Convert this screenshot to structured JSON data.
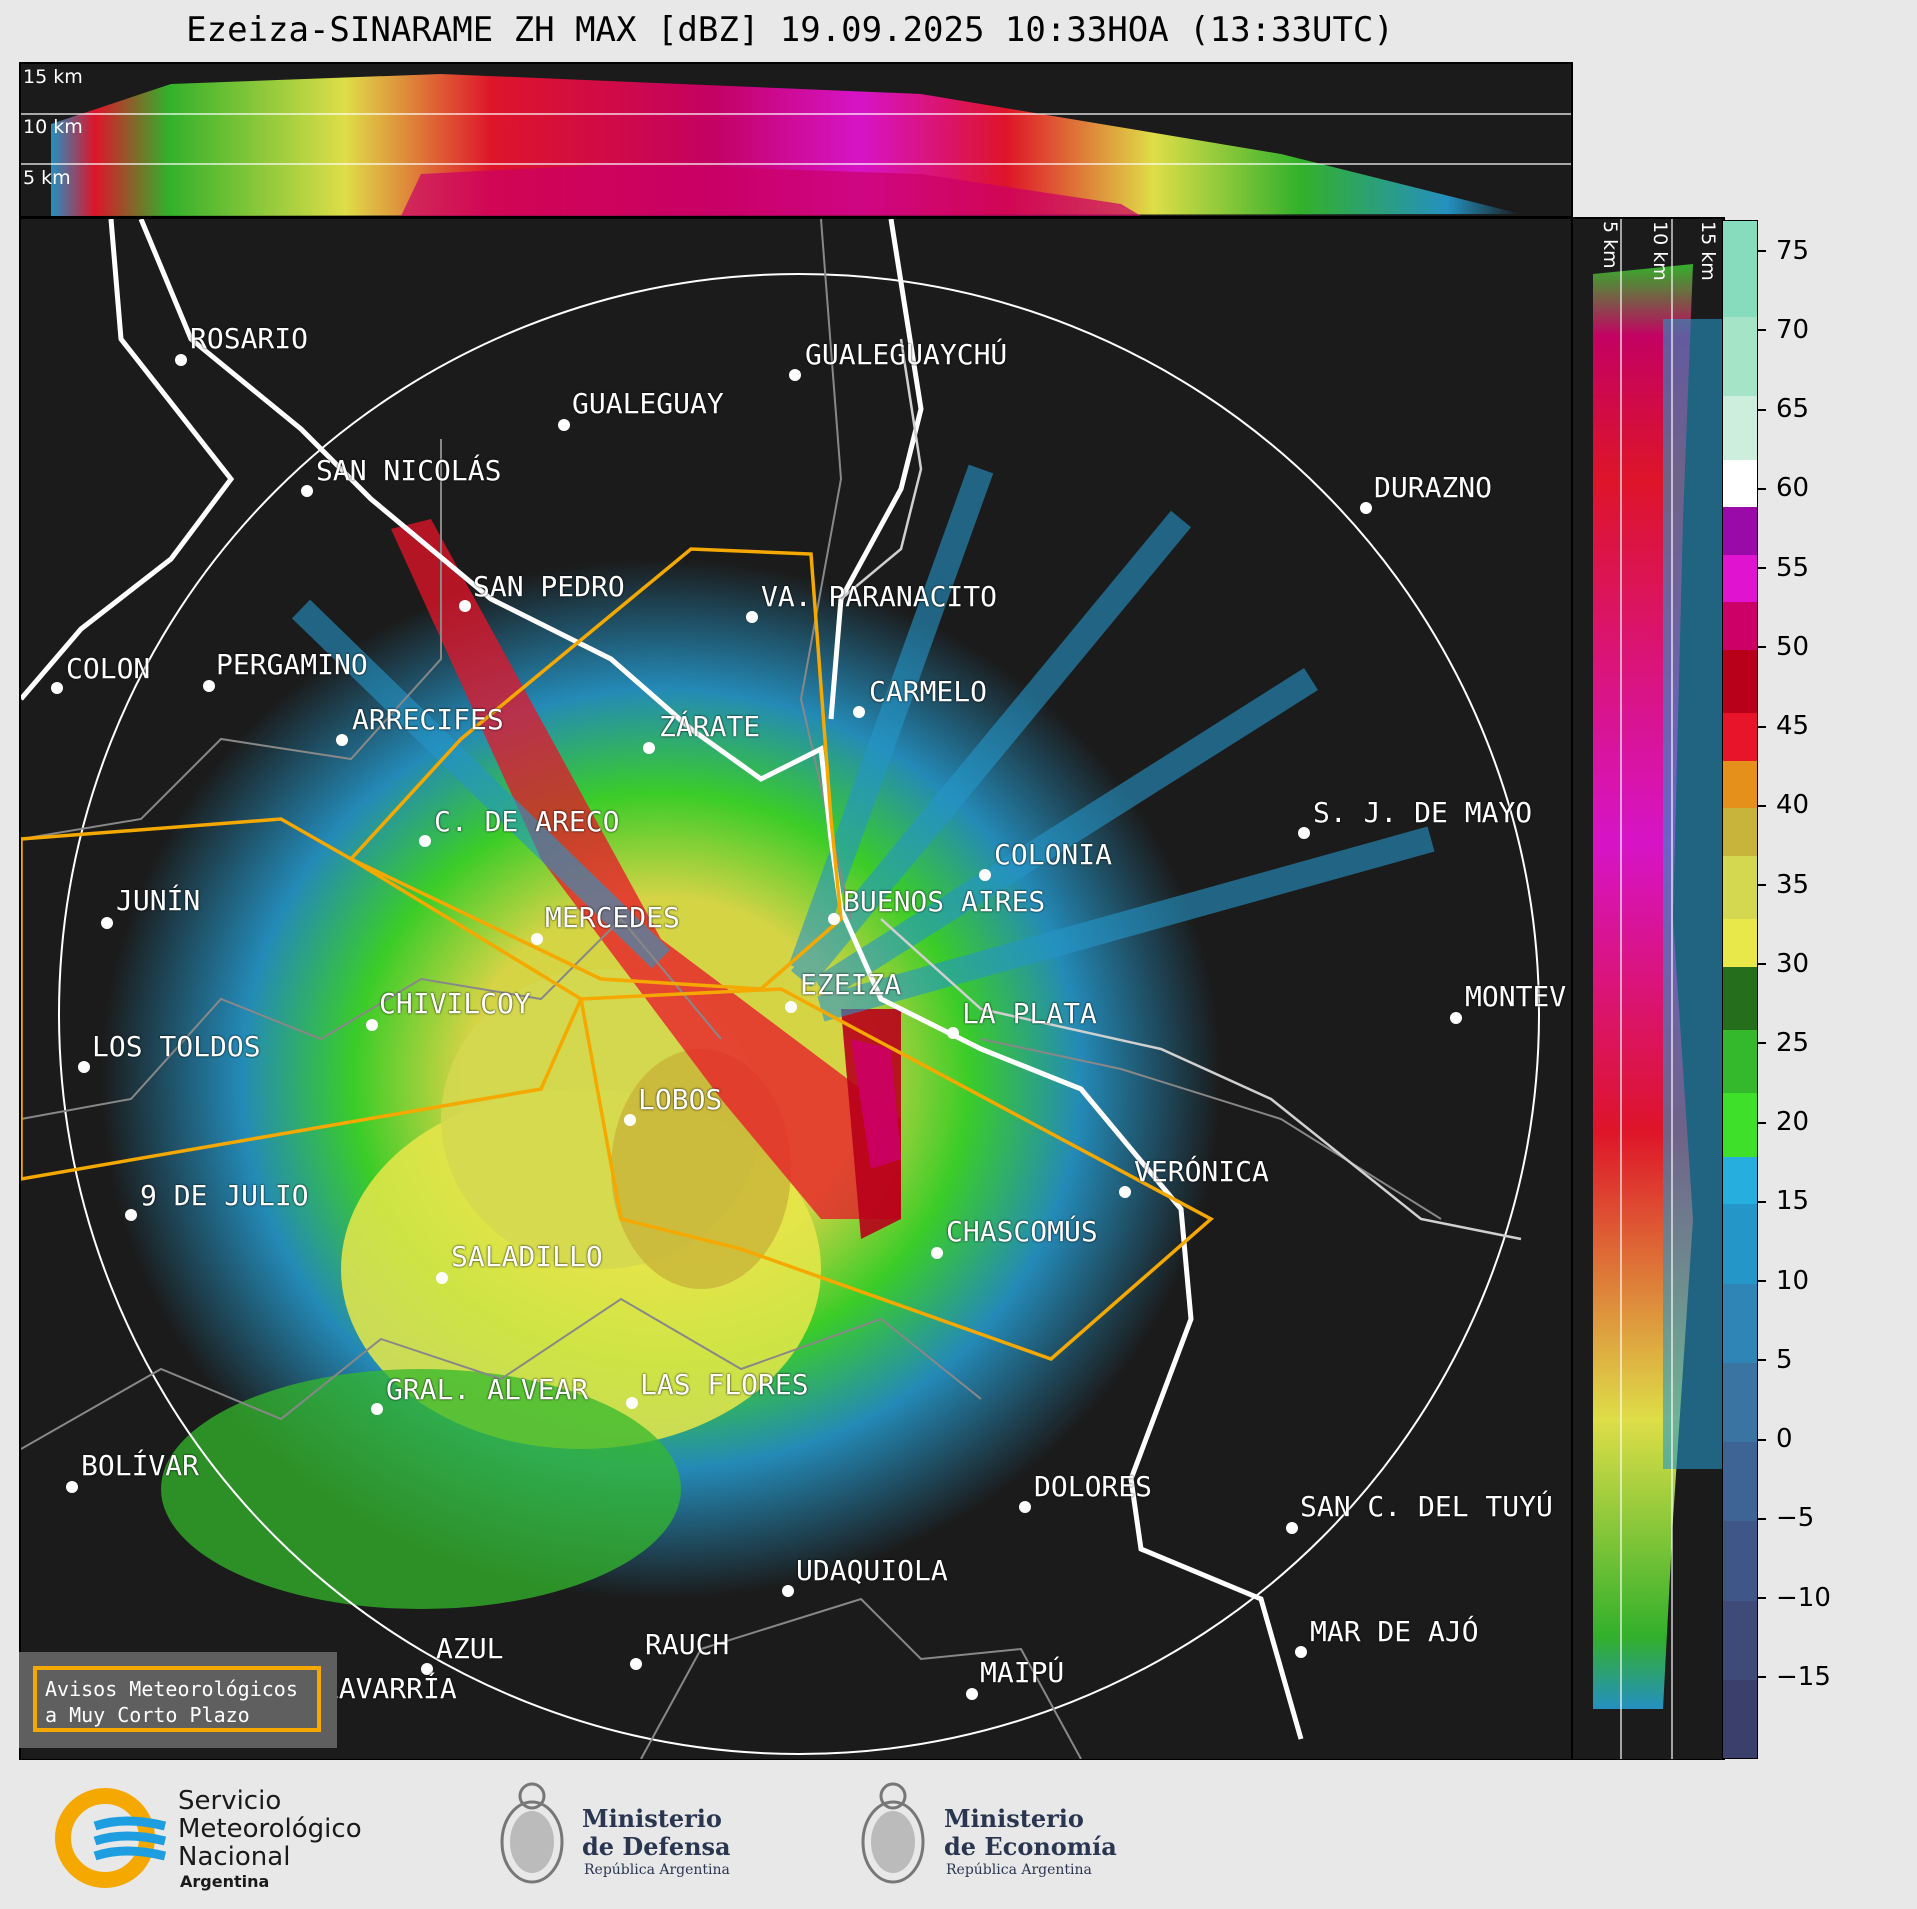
{
  "title": "Ezeiza-SINARAME ZH MAX [dBZ] 19.09.2025 10:33HOA (13:33UTC)",
  "top_heights": [
    "15 km",
    "10 km",
    "5 km"
  ],
  "side_heights": [
    "5 km",
    "10 km",
    "15 km"
  ],
  "colorbar": {
    "ticks": [
      "75",
      "70",
      "65",
      "60",
      "55",
      "50",
      "45",
      "40",
      "35",
      "30",
      "25",
      "20",
      "15",
      "10",
      "5",
      "0",
      "−5",
      "−10",
      "−15"
    ],
    "range": [
      -20,
      77
    ],
    "segments": [
      {
        "from": -20,
        "to": -15,
        "color": "#3a3f6c"
      },
      {
        "from": -15,
        "to": -10,
        "color": "#3e4a78"
      },
      {
        "from": -10,
        "to": -5,
        "color": "#3f5688"
      },
      {
        "from": -5,
        "to": 0,
        "color": "#3d6494"
      },
      {
        "from": 0,
        "to": 5,
        "color": "#3a74a2"
      },
      {
        "from": 5,
        "to": 10,
        "color": "#2f86b6"
      },
      {
        "from": 10,
        "to": 15,
        "color": "#2596c8"
      },
      {
        "from": 15,
        "to": 18,
        "color": "#25aede"
      },
      {
        "from": 18,
        "to": 22,
        "color": "#3ee02a"
      },
      {
        "from": 22,
        "to": 26,
        "color": "#34b82c"
      },
      {
        "from": 26,
        "to": 30,
        "color": "#246e1c"
      },
      {
        "from": 30,
        "to": 33,
        "color": "#e8e84a"
      },
      {
        "from": 33,
        "to": 37,
        "color": "#d4d850"
      },
      {
        "from": 37,
        "to": 40,
        "color": "#c8b43a"
      },
      {
        "from": 40,
        "to": 43,
        "color": "#e4901a"
      },
      {
        "from": 43,
        "to": 46,
        "color": "#e8142a"
      },
      {
        "from": 46,
        "to": 50,
        "color": "#b8001a"
      },
      {
        "from": 50,
        "to": 53,
        "color": "#cc0066"
      },
      {
        "from": 53,
        "to": 56,
        "color": "#e014d0"
      },
      {
        "from": 56,
        "to": 59,
        "color": "#9a0aa8"
      },
      {
        "from": 59,
        "to": 62,
        "color": "#ffffff"
      },
      {
        "from": 62,
        "to": 66,
        "color": "#cdeedd"
      },
      {
        "from": 66,
        "to": 71,
        "color": "#a6e4c8"
      },
      {
        "from": 71,
        "to": 77,
        "color": "#86dcbc"
      }
    ]
  },
  "cities": [
    {
      "name": "ROSARIO"
    },
    {
      "name": "GUALEGUAYCHÚ"
    },
    {
      "name": "GUALEGUAY"
    },
    {
      "name": "SAN NICOLÁS"
    },
    {
      "name": "DURAZNO"
    },
    {
      "name": "SAN PEDRO"
    },
    {
      "name": "VA. PARANACITO"
    },
    {
      "name": "COLON"
    },
    {
      "name": "PERGAMINO"
    },
    {
      "name": "CARMELO"
    },
    {
      "name": "ARRECIFES"
    },
    {
      "name": "ZÁRATE"
    },
    {
      "name": "S. J. DE MAYO"
    },
    {
      "name": "C. DE ARECO"
    },
    {
      "name": "COLONIA"
    },
    {
      "name": "JUNÍN"
    },
    {
      "name": "MERCEDES"
    },
    {
      "name": "BUENOS AIRES"
    },
    {
      "name": "MONTEV"
    },
    {
      "name": "EZEIZA"
    },
    {
      "name": "CHIVILCOY"
    },
    {
      "name": "LA PLATA"
    },
    {
      "name": "LOS TOLDOS"
    },
    {
      "name": "LOBOS"
    },
    {
      "name": "VERÓNICA"
    },
    {
      "name": "9 DE JULIO"
    },
    {
      "name": "CHASCOMÚS"
    },
    {
      "name": "SALADILLO"
    },
    {
      "name": "GRAL. ALVEAR"
    },
    {
      "name": "LAS FLORES"
    },
    {
      "name": "BOLÍVAR"
    },
    {
      "name": "DOLORES"
    },
    {
      "name": "SAN C. DEL TUYÚ"
    },
    {
      "name": "UDAQUIOLA"
    },
    {
      "name": "MAR DE AJÓ"
    },
    {
      "name": "AZUL"
    },
    {
      "name": "RAUCH"
    },
    {
      "name": "MAIPÚ"
    },
    {
      "name": "OLAVARRÍA"
    }
  ],
  "legend": {
    "line1": "Avisos Meteorológicos",
    "line2": "a Muy Corto Plazo"
  },
  "footer": {
    "smn_line1": "Servicio",
    "smn_line2": "Meteorológico",
    "smn_line3": "Nacional",
    "smn_line4": "Argentina",
    "defensa_line1": "Ministerio",
    "defensa_line2": "de Defensa",
    "defensa_sub": "República Argentina",
    "economia_line1": "Ministerio",
    "economia_line2": "de Economía",
    "economia_sub": "República Argentina"
  },
  "colors": {
    "background": "#1b1b1b",
    "warning_outline": "#f5a800",
    "coast": "#ffffff",
    "border": "#888888",
    "smn_blue": "#1e9ee0",
    "smn_orange": "#f5a800"
  }
}
